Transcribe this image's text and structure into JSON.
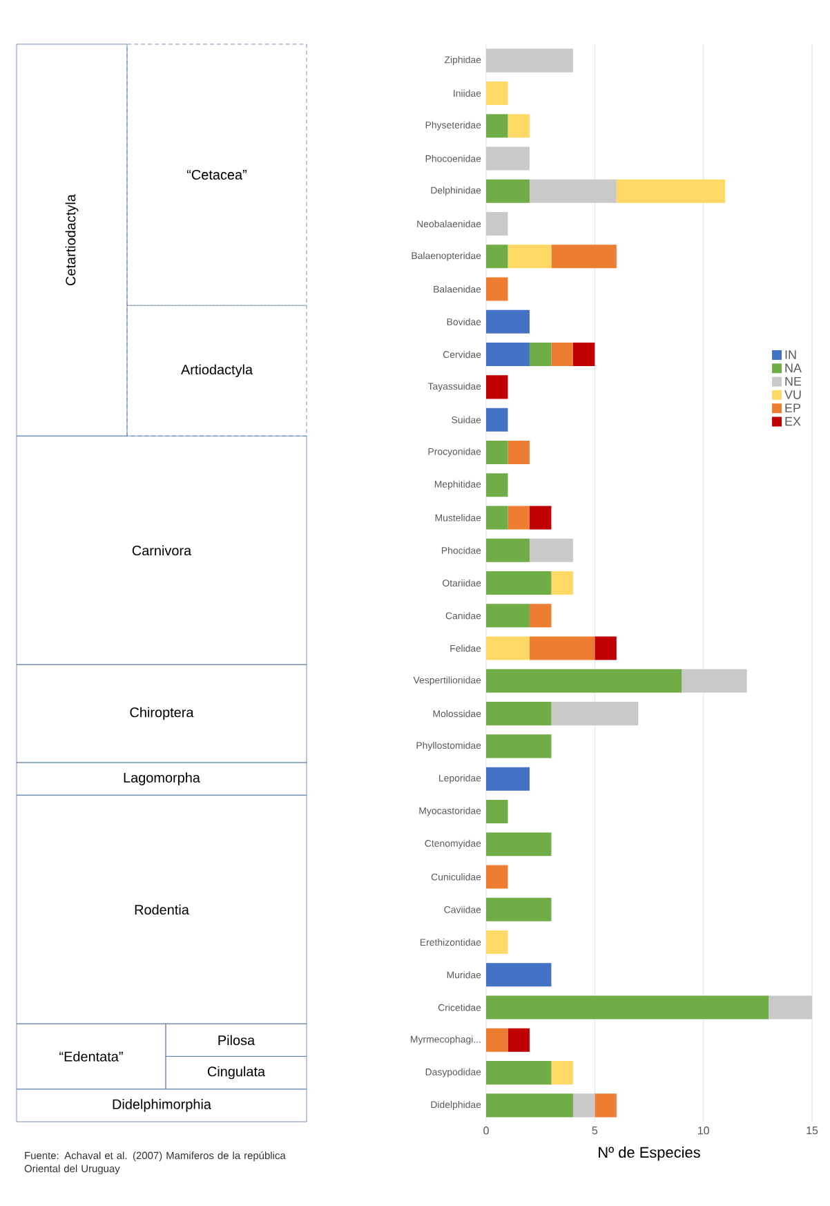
{
  "chart_data": {
    "type": "bar",
    "orientation": "horizontal",
    "stacked": true,
    "categories": [
      "Ziphidae",
      "Iniidae",
      "Physeteridae",
      "Phocoenidae",
      "Delphinidae",
      "Neobalaenidae",
      "Balaenopteridae",
      "Balaenidae",
      "Bovidae",
      "Cervidae",
      "Tayassuidae",
      "Suidae",
      "Procyonidae",
      "Mephitidae",
      "Mustelidae",
      "Phocidae",
      "Otariidae",
      "Canidae",
      "Felidae",
      "Vespertilionidae",
      "Molossidae",
      "Phyllostomidae",
      "Leporidae",
      "Myocastoridae",
      "Ctenomyidae",
      "Cuniculidae",
      "Caviidae",
      "Erethizontidae",
      "Muridae",
      "Cricetidae",
      "Myrmecophagi...",
      "Dasypodidae",
      "Didelphidae"
    ],
    "series": [
      {
        "name": "IN",
        "color": "#4472c4",
        "values": [
          0,
          0,
          0,
          0,
          0,
          0,
          0,
          0,
          2,
          2,
          0,
          1,
          0,
          0,
          0,
          0,
          0,
          0,
          0,
          0,
          0,
          0,
          2,
          0,
          0,
          0,
          0,
          0,
          3,
          0,
          0,
          0,
          0
        ]
      },
      {
        "name": "NA",
        "color": "#70ad47",
        "values": [
          0,
          0,
          1,
          0,
          2,
          0,
          1,
          0,
          0,
          1,
          0,
          0,
          1,
          1,
          1,
          2,
          3,
          2,
          0,
          9,
          3,
          3,
          0,
          1,
          3,
          0,
          3,
          0,
          0,
          13,
          0,
          3,
          4
        ]
      },
      {
        "name": "NE",
        "color": "#c9c9c9",
        "values": [
          4,
          0,
          0,
          2,
          4,
          1,
          0,
          0,
          0,
          0,
          0,
          0,
          0,
          0,
          0,
          2,
          0,
          0,
          0,
          3,
          4,
          0,
          0,
          0,
          0,
          0,
          0,
          0,
          0,
          2,
          0,
          0,
          1
        ]
      },
      {
        "name": "VU",
        "color": "#ffd966",
        "values": [
          0,
          1,
          1,
          0,
          5,
          0,
          2,
          0,
          0,
          0,
          0,
          0,
          0,
          0,
          0,
          0,
          1,
          0,
          2,
          0,
          0,
          0,
          0,
          0,
          0,
          0,
          0,
          1,
          0,
          0,
          0,
          1,
          0
        ]
      },
      {
        "name": "EP",
        "color": "#ed7d31",
        "values": [
          0,
          0,
          0,
          0,
          0,
          0,
          3,
          1,
          0,
          1,
          0,
          0,
          1,
          0,
          1,
          0,
          0,
          1,
          3,
          0,
          0,
          0,
          0,
          0,
          0,
          1,
          0,
          0,
          0,
          0,
          1,
          0,
          1
        ]
      },
      {
        "name": "EX",
        "color": "#c00000",
        "values": [
          0,
          0,
          0,
          0,
          0,
          0,
          0,
          0,
          0,
          1,
          1,
          0,
          0,
          0,
          1,
          0,
          0,
          0,
          1,
          0,
          0,
          0,
          0,
          0,
          0,
          0,
          0,
          0,
          0,
          0,
          1,
          0,
          0
        ]
      }
    ],
    "xlim": [
      0,
      15
    ],
    "xticks": [
      0,
      5,
      10,
      15
    ],
    "grid": "x",
    "legend": "right",
    "xlabel": "Nº de Especies",
    "annotations": [
      "Fuente: Achaval et al. (2007) Mamiferos de la república Oriental del Uruguay",
      "Cetartiodactyla",
      "“Cetacea”",
      "Artiodactyla",
      "Carnivora",
      "Chiroptera",
      "Lagomorpha",
      "Rodentia",
      "“Edentata”",
      "Pilosa",
      "Cingulata",
      "Didelphimorphia"
    ]
  }
}
